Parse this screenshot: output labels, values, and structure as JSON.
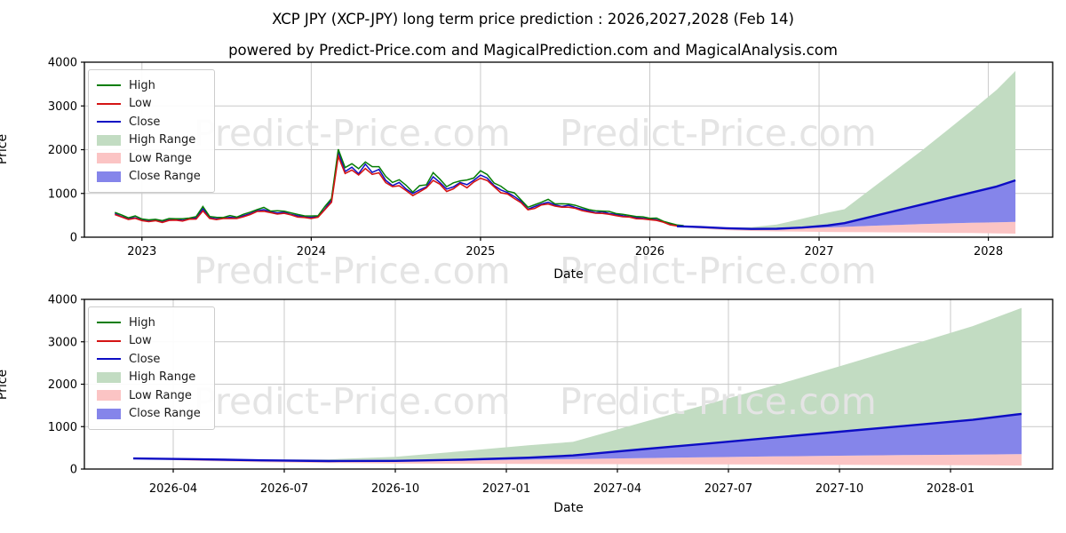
{
  "header": {
    "title": "XCP JPY (XCP-JPY) long term price prediction : 2026,2027,2028 (Feb 14)",
    "subtitle": "powered by Predict-Price.com and MagicalPrediction.com and MagicalAnalysis.com"
  },
  "watermark": {
    "text": "Predict-Price.com",
    "color": "#e4e4e4"
  },
  "colors": {
    "line_high": "#067d06",
    "line_low": "#d41414",
    "line_close": "#0d0dc4",
    "fill_high_range": "#c2dcc2",
    "fill_low_range": "#fbc4c4",
    "fill_close_range": "#8585ea",
    "grid": "#c9c9c9",
    "spine": "#000000",
    "tick_label": "#000000"
  },
  "legend_items": [
    {
      "label": "High",
      "type": "line",
      "color": "#067d06"
    },
    {
      "label": "Low",
      "type": "line",
      "color": "#d41414"
    },
    {
      "label": "Close",
      "type": "line",
      "color": "#0d0dc4"
    },
    {
      "label": "High Range",
      "type": "patch",
      "color": "#c2dcc2"
    },
    {
      "label": "Low Range",
      "type": "patch",
      "color": "#fbc4c4"
    },
    {
      "label": "Close Range",
      "type": "patch",
      "color": "#8585ea"
    }
  ],
  "series_store": {
    "history": {
      "x_start": 2022.84,
      "x_step": 0.04,
      "close": [
        540,
        470,
        430,
        445,
        400,
        370,
        385,
        360,
        395,
        410,
        385,
        420,
        440,
        650,
        450,
        420,
        435,
        455,
        440,
        490,
        540,
        600,
        630,
        580,
        555,
        570,
        520,
        490,
        465,
        450,
        475,
        640,
        850,
        1950,
        1500,
        1600,
        1450,
        1670,
        1480,
        1550,
        1300,
        1180,
        1250,
        1100,
        1000,
        1080,
        1150,
        1380,
        1250,
        1100,
        1150,
        1250,
        1200,
        1300,
        1420,
        1350,
        1180,
        1080,
        1020,
        930,
        820,
        640,
        700,
        760,
        800,
        740,
        700,
        730,
        680,
        640,
        600,
        560,
        580,
        540,
        520,
        490,
        470,
        450,
        430,
        420,
        400,
        350,
        300,
        265,
        250
      ],
      "high": [
        567,
        508,
        443,
        485,
        416,
        396,
        408,
        378,
        427,
        422,
        420,
        437,
        471,
        700,
        473,
        454,
        448,
        496,
        458,
        524,
        572,
        630,
        680,
        597,
        605,
        593,
        556,
        519,
        488,
        486,
        489,
        698,
        884,
        2010,
        1590,
        1680,
        1566,
        1720,
        1613,
        1612,
        1391,
        1251,
        1313,
        1188,
        1030,
        1177,
        1196,
        1477,
        1325,
        1155,
        1242,
        1288,
        1308,
        1352,
        1519,
        1431,
        1239,
        1166,
        1051,
        1014,
        853,
        685,
        742,
        798,
        864,
        762,
        763,
        759,
        728,
        678,
        630,
        605,
        597,
        589,
        541,
        524,
        498,
        473,
        464,
        433,
        436,
        364,
        321,
        281,
        263
      ],
      "low": [
        518,
        461,
        404,
        432,
        380,
        355,
        377,
        338,
        383,
        390,
        370,
        412,
        414,
        600,
        428,
        403,
        426,
        428,
        427,
        466,
        518,
        588,
        592,
        563,
        527,
        547,
        510,
        461,
        451,
        428,
        456,
        627,
        799,
        1850,
        1455,
        1536,
        1421,
        1570,
        1436,
        1473,
        1248,
        1156,
        1175,
        1067,
        950,
        1037,
        1127,
        1297,
        1213,
        1045,
        1104,
        1225,
        1128,
        1261,
        1349,
        1296,
        1156,
        1015,
        989,
        884,
        787,
        627,
        658,
        737,
        760,
        710,
        686,
        686,
        660,
        608,
        576,
        549,
        545,
        524,
        494,
        470,
        461,
        423,
        417,
        399,
        384,
        343,
        282,
        257,
        238
      ]
    },
    "forecast": {
      "x": [
        2026.16,
        2026.3,
        2026.45,
        2026.6,
        2026.75,
        2026.9,
        2027.05,
        2027.15,
        2027.3,
        2027.45,
        2027.6,
        2027.75,
        2027.9,
        2028.05,
        2028.16
      ],
      "close": [
        250,
        232,
        205,
        188,
        192,
        220,
        268,
        320,
        460,
        600,
        740,
        880,
        1020,
        1160,
        1300
      ],
      "high_upper": [
        252,
        240,
        222,
        228,
        290,
        420,
        560,
        640,
        1080,
        1520,
        1960,
        2420,
        2890,
        3370,
        3800
      ],
      "close_lower": [
        248,
        215,
        182,
        172,
        180,
        200,
        222,
        235,
        258,
        278,
        298,
        315,
        330,
        342,
        352
      ],
      "low_lower": [
        245,
        195,
        160,
        142,
        132,
        125,
        120,
        118,
        114,
        110,
        106,
        100,
        95,
        88,
        82
      ]
    }
  },
  "chart_data": [
    {
      "type": "line",
      "title": "",
      "xlabel": "Date",
      "ylabel": "Price",
      "xlim": [
        2022.66,
        2028.38
      ],
      "ylim": [
        0,
        4000
      ],
      "grid": true,
      "legend_position": "upper left",
      "yticks": [
        {
          "v": 0,
          "label": "0"
        },
        {
          "v": 1000,
          "label": "1000"
        },
        {
          "v": 2000,
          "label": "2000"
        },
        {
          "v": 3000,
          "label": "3000"
        },
        {
          "v": 4000,
          "label": "4000"
        }
      ],
      "xticks": [
        {
          "v": 2023,
          "label": "2023"
        },
        {
          "v": 2024,
          "label": "2024"
        },
        {
          "v": 2025,
          "label": "2025"
        },
        {
          "v": 2026,
          "label": "2026"
        },
        {
          "v": 2027,
          "label": "2027"
        },
        {
          "v": 2028,
          "label": "2028"
        }
      ],
      "uses": [
        "history",
        "forecast"
      ],
      "series_legend": [
        "High",
        "Low",
        "Close",
        "High Range",
        "Low Range",
        "Close Range"
      ]
    },
    {
      "type": "line",
      "title": "",
      "xlabel": "Date",
      "ylabel": "Price",
      "xlim": [
        2026.05,
        2028.23
      ],
      "ylim": [
        0,
        4000
      ],
      "grid": true,
      "legend_position": "upper left",
      "yticks": [
        {
          "v": 0,
          "label": "0"
        },
        {
          "v": 1000,
          "label": "1000"
        },
        {
          "v": 2000,
          "label": "2000"
        },
        {
          "v": 3000,
          "label": "3000"
        },
        {
          "v": 4000,
          "label": "4000"
        }
      ],
      "xticks": [
        {
          "v": 2026.25,
          "label": "2026-04"
        },
        {
          "v": 2026.5,
          "label": "2026-07"
        },
        {
          "v": 2026.75,
          "label": "2026-10"
        },
        {
          "v": 2027.0,
          "label": "2027-01"
        },
        {
          "v": 2027.25,
          "label": "2027-04"
        },
        {
          "v": 2027.5,
          "label": "2027-07"
        },
        {
          "v": 2027.75,
          "label": "2027-10"
        },
        {
          "v": 2028.0,
          "label": "2028-01"
        }
      ],
      "uses": [
        "forecast"
      ],
      "series_legend": [
        "High",
        "Low",
        "Close",
        "High Range",
        "Low Range",
        "Close Range"
      ]
    }
  ]
}
